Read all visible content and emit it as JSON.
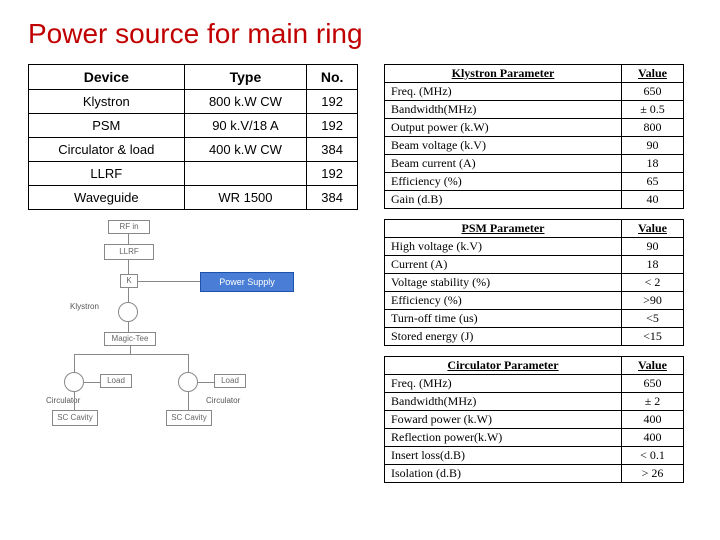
{
  "title": "Power source for main ring",
  "device_table": {
    "headers": [
      "Device",
      "Type",
      "No."
    ],
    "rows": [
      [
        "Klystron",
        "800 k.W CW",
        "192"
      ],
      [
        "PSM",
        "90 k.V/18 A",
        "192"
      ],
      [
        "Circulator & load",
        "400 k.W CW",
        "384"
      ],
      [
        "LLRF",
        "",
        "192"
      ],
      [
        "Waveguide",
        "WR 1500",
        "384"
      ]
    ]
  },
  "klystron_table": {
    "header": [
      "Klystron Parameter",
      "Value"
    ],
    "rows": [
      [
        "Freq. (MHz)",
        "650"
      ],
      [
        "Bandwidth(MHz)",
        "± 0.5"
      ],
      [
        "Output power (k.W)",
        "800"
      ],
      [
        "Beam voltage (k.V)",
        "90"
      ],
      [
        "Beam current (A)",
        "18"
      ],
      [
        "Efficiency (%)",
        "65"
      ],
      [
        "Gain (d.B)",
        "40"
      ]
    ]
  },
  "psm_table": {
    "header": [
      "PSM Parameter",
      "Value"
    ],
    "rows": [
      [
        "High voltage (k.V)",
        "90"
      ],
      [
        "Current (A)",
        "18"
      ],
      [
        "Voltage stability (%)",
        "< 2"
      ],
      [
        "Efficiency (%)",
        ">90"
      ],
      [
        "Turn-off time (us)",
        "<5"
      ],
      [
        "Stored energy (J)",
        "<15"
      ]
    ]
  },
  "circulator_table": {
    "header": [
      "Circulator Parameter",
      "Value"
    ],
    "rows": [
      [
        "Freq. (MHz)",
        "650"
      ],
      [
        "Bandwidth(MHz)",
        "± 2"
      ],
      [
        "Foward power (k.W)",
        "400"
      ],
      [
        "Reflection power(k.W)",
        "400"
      ],
      [
        "Insert loss(d.B)",
        "< 0.1"
      ],
      [
        "Isolation (d.B)",
        "> 26"
      ]
    ]
  },
  "diagram": {
    "rfin": "RF in",
    "llrf": "LLRF",
    "k": "K",
    "ps": "Power Supply",
    "klystron": "Klystron",
    "magictee": "Magic-Tee",
    "load": "Load",
    "circulator": "Circulator",
    "sccavity": "SC Cavity"
  }
}
